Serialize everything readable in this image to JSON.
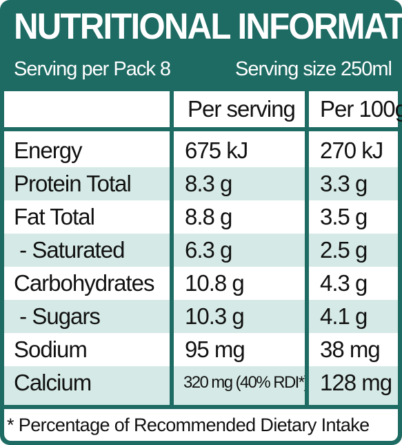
{
  "title": "NUTRITIONAL INFORMATION",
  "serving_per_pack": "Serving per Pack 8",
  "serving_size": "Serving size 250ml",
  "columns": [
    "",
    "Per serving",
    "Per 100g"
  ],
  "rows": [
    {
      "nutrient": "Energy",
      "per_serving": "675 kJ",
      "per_100g": "270 kJ"
    },
    {
      "nutrient": "Protein Total",
      "per_serving": "8.3 g",
      "per_100g": "3.3 g"
    },
    {
      "nutrient": "Fat Total",
      "per_serving": "8.8 g",
      "per_100g": "3.5 g"
    },
    {
      "nutrient": " - Saturated",
      "per_serving": "6.3 g",
      "per_100g": "2.5 g"
    },
    {
      "nutrient": "Carbohydrates",
      "per_serving": "10.8 g",
      "per_100g": "4.3 g"
    },
    {
      "nutrient": " - Sugars",
      "per_serving": "10.3 g",
      "per_100g": "4.1 g"
    },
    {
      "nutrient": "Sodium",
      "per_serving": "95 mg",
      "per_100g": "38 mg"
    },
    {
      "nutrient": "Calcium",
      "per_serving": "320 mg (40% RDI*)",
      "per_100g": "128 mg"
    }
  ],
  "footnote": "* Percentage of Recommended Dietary Intake",
  "colors": {
    "brand_green": "#1e6b63",
    "band_light": "#d5eae6",
    "text": "#111111"
  }
}
